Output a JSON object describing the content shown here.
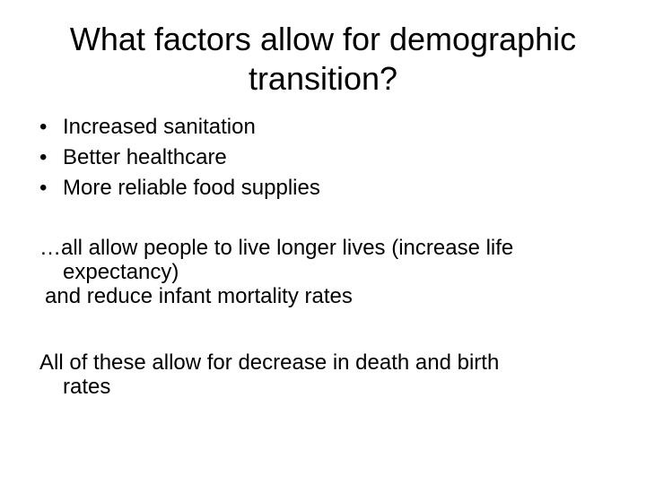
{
  "slide": {
    "title": "What factors allow for demographic transition?",
    "bullets": [
      "Increased sanitation",
      "Better healthcare",
      "More reliable food supplies"
    ],
    "bullet_glyph": "•",
    "paragraph_1": {
      "line_1": "…all allow people to live longer lives (increase life",
      "line_2": "expectancy)",
      "line_3": "and reduce infant mortality rates"
    },
    "paragraph_2": {
      "line_1": "All of these allow for decrease in death and birth",
      "line_2": "rates"
    }
  }
}
